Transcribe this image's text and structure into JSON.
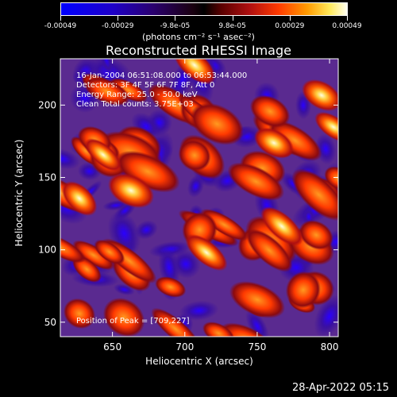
{
  "colorbar": {
    "ticks": [
      "-0.00049",
      "-0.00029",
      "-9.8e-05",
      "9.8e-05",
      "0.00029",
      "0.00049"
    ],
    "unit": "(photons cm⁻² s⁻¹ asec⁻²)"
  },
  "chart_data": {
    "type": "heatmap",
    "title": "Reconstructed RHESSI Image",
    "xlabel": "Heliocentric X (arcsec)",
    "ylabel": "Heliocentric Y (arcsec)",
    "xlim": [
      614,
      806
    ],
    "ylim": [
      40,
      232
    ],
    "x_ticks": [
      650,
      700,
      750,
      800
    ],
    "y_ticks": [
      50,
      100,
      150,
      200
    ],
    "clim": [
      -0.00049,
      0.00049
    ],
    "annotations": [
      "16-Jan-2004 06:51:08.000 to 06:53:44.000",
      "Detectors: 3F 4F 5F 6F 7F 8F, Att 0",
      "Energy Range: 25.0 - 50.0 keV",
      "Clean     Total counts: 3.75E+03"
    ],
    "peak_label": "Position of Peak = [709,227]",
    "peak": [
      709,
      227
    ]
  },
  "footer": {
    "timestamp": "28-Apr-2022 05:15"
  }
}
